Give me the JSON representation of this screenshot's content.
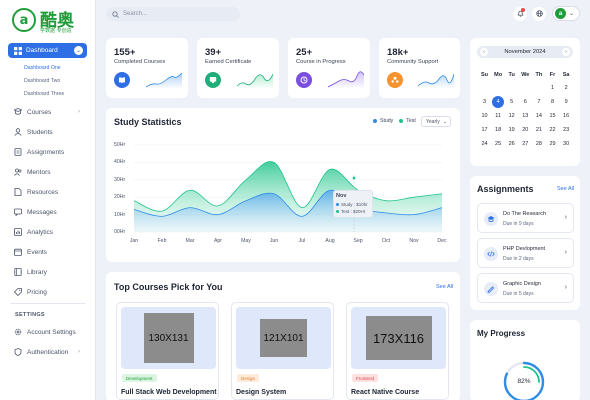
{
  "logo": {
    "mark": "a",
    "name": "酷奥",
    "tagline": "学数据 专创造"
  },
  "sidebar": {
    "dashboard_label": "Dashboard",
    "sub_items": [
      "Dashboard One",
      "Dashboard Two",
      "Dashboard Three"
    ],
    "items": [
      {
        "label": "Courses",
        "icon": "courses-icon",
        "has_arrow": true
      },
      {
        "label": "Students",
        "icon": "students-icon"
      },
      {
        "label": "Assignments",
        "icon": "assignments-icon"
      },
      {
        "label": "Mentors",
        "icon": "mentors-icon"
      },
      {
        "label": "Resources",
        "icon": "resources-icon"
      },
      {
        "label": "Messages",
        "icon": "messages-icon"
      },
      {
        "label": "Analytics",
        "icon": "analytics-icon"
      },
      {
        "label": "Events",
        "icon": "events-icon"
      },
      {
        "label": "Library",
        "icon": "library-icon"
      },
      {
        "label": "Pricing",
        "icon": "pricing-icon"
      }
    ],
    "settings_heading": "SETTINGS",
    "settings_items": [
      {
        "label": "Account Settings",
        "icon": "gear-icon"
      },
      {
        "label": "Authentication",
        "icon": "shield-icon",
        "has_arrow": true
      }
    ]
  },
  "header": {
    "search_placeholder": "Search...",
    "avatar_initial": "a"
  },
  "stats": [
    {
      "value": "155+",
      "label": "Completed Courses",
      "color": "#2f6fe6",
      "icon": "book-icon"
    },
    {
      "value": "39+",
      "label": "Earned Certificate",
      "color": "#1fae7a",
      "icon": "certificate-icon"
    },
    {
      "value": "25+",
      "label": "Course in Progress",
      "color": "#7a4fe0",
      "icon": "progress-icon"
    },
    {
      "value": "18k+",
      "label": "Community Support",
      "color": "#f59331",
      "icon": "community-icon"
    }
  ],
  "study": {
    "title": "Study Statistics",
    "legend": [
      "Study",
      "Test"
    ],
    "period": "Yearly",
    "tooltip": {
      "month": "Nov",
      "study": "Study : $10hr",
      "test": "Test : $20Hr"
    }
  },
  "chart_data": {
    "type": "area",
    "categories": [
      "Jan",
      "Feb",
      "Mar",
      "Apr",
      "May",
      "Jun",
      "Jul",
      "Aug",
      "Sep",
      "Oct",
      "Nov",
      "Dec"
    ],
    "y_ticks": [
      "50Hr",
      "40Hr",
      "30Hr",
      "20Hr",
      "10Hr",
      "00Hr"
    ],
    "ylim": [
      0,
      50
    ],
    "series": [
      {
        "name": "Test",
        "color": "#1fc48a",
        "values": [
          18,
          12,
          24,
          15,
          30,
          40,
          14,
          36,
          24,
          18,
          20,
          22
        ]
      },
      {
        "name": "Study",
        "color": "#2f8de6",
        "values": [
          13,
          9,
          14,
          10,
          18,
          22,
          9,
          24,
          14,
          11,
          10,
          14
        ]
      }
    ]
  },
  "courses": {
    "title": "Top Courses Pick for You",
    "see_all": "See All",
    "items": [
      {
        "placeholder": "130X131",
        "tag": "Development",
        "tag_bg": "#dcf5e3",
        "tag_color": "#1f9d3a",
        "title": "Full Stack Web Development"
      },
      {
        "placeholder": "121X101",
        "tag": "Design",
        "tag_bg": "#fdebdc",
        "tag_color": "#e07a26",
        "title": "Design System"
      },
      {
        "placeholder": "173X116",
        "tag": "Frontend",
        "tag_bg": "#fde0e0",
        "tag_color": "#d64545",
        "title": "React Native Course"
      }
    ]
  },
  "calendar": {
    "month": "November 2024",
    "dow": [
      "Su",
      "Mo",
      "Tu",
      "We",
      "Th",
      "Fr",
      "Sa"
    ],
    "rows": [
      [
        "",
        "",
        "",
        "",
        "",
        "1",
        "2"
      ],
      [
        "3",
        "4",
        "5",
        "6",
        "7",
        "8",
        "9"
      ],
      [
        "10",
        "11",
        "12",
        "13",
        "14",
        "15",
        "16"
      ],
      [
        "17",
        "18",
        "19",
        "20",
        "21",
        "22",
        "23"
      ],
      [
        "24",
        "25",
        "26",
        "27",
        "28",
        "29",
        "30"
      ]
    ],
    "today": "4"
  },
  "assignments": {
    "title": "Assignments",
    "see_all": "See All",
    "items": [
      {
        "title": "Do The Research",
        "due": "Due in 9 days",
        "icon": "research-icon"
      },
      {
        "title": "PHP Devlopment",
        "due": "Due in 2 days",
        "icon": "code-icon"
      },
      {
        "title": "Graphic Design",
        "due": "Due in 5 days",
        "icon": "design-icon"
      }
    ]
  },
  "progress": {
    "title": "My Progress",
    "percent_label": "82%",
    "value": 0.82
  }
}
